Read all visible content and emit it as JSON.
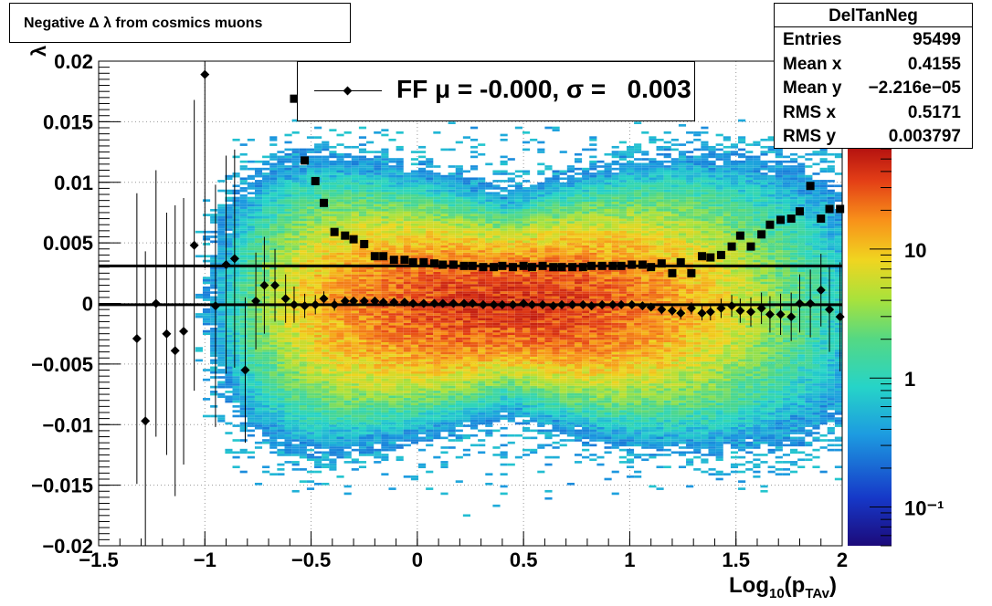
{
  "title": "Negative Δ λ from cosmics muons",
  "legend": {
    "label": "FF μ = -0.000, σ =   0.003"
  },
  "stats": {
    "title": "DelTanNeg",
    "rows": [
      {
        "key": "Entries",
        "value": "95499"
      },
      {
        "key": "Mean x",
        "value": "0.4155"
      },
      {
        "key": "Mean y",
        "value": "−2.216e−05"
      },
      {
        "key": "RMS x",
        "value": "0.5171"
      },
      {
        "key": "RMS y",
        "value": "0.003797"
      }
    ]
  },
  "chart_data": {
    "type": "heatmap",
    "xlabel_main": "Log",
    "xlabel_sub": "10",
    "xlabel_rest": "(p",
    "xlabel_sub2": "TAv",
    "xlabel_end": ")",
    "ylabel": "λ",
    "xlim": [
      -1.5,
      2
    ],
    "ylim": [
      -0.02,
      0.02
    ],
    "x_ticks": [
      -1.5,
      -1,
      -0.5,
      0,
      0.5,
      1,
      1.5,
      2
    ],
    "x_tick_labels": [
      "−1.5",
      "−1",
      "−0.5",
      "0",
      "0.5",
      "1",
      "1.5",
      "2"
    ],
    "y_ticks": [
      -0.02,
      -0.015,
      -0.01,
      -0.005,
      0,
      0.005,
      0.01,
      0.015,
      0.02
    ],
    "y_tick_labels": [
      "−0.02",
      "−0.015",
      "−0.01",
      "−0.005",
      "0",
      "0.005",
      "0.01",
      "0.015",
      "0.02"
    ],
    "colorbar": {
      "scale": "log",
      "range": [
        0.05,
        60
      ],
      "tick_labels": [
        "10⁻¹",
        "1",
        "10"
      ],
      "tick_values": [
        0.1,
        1,
        10
      ]
    },
    "grid": true,
    "heatmap_model": {
      "mean_x": 0.4155,
      "mean_y": -2.22e-05,
      "rms_x": 0.5171,
      "rms_y": 0.003797,
      "entries": 95499
    },
    "series": [
      {
        "name": "mean",
        "marker": "diamond",
        "x": [
          -1.32,
          -1.28,
          -1.23,
          -1.18,
          -1.14,
          -1.1,
          -1.05,
          -1.0,
          -0.95,
          -0.9,
          -0.86,
          -0.81,
          -0.76,
          -0.72,
          -0.67,
          -0.62,
          -0.58,
          -0.53,
          -0.48,
          -0.44,
          -0.39,
          -0.34,
          -0.3,
          -0.25,
          -0.2,
          -0.16,
          -0.11,
          -0.06,
          -0.02,
          0.03,
          0.08,
          0.12,
          0.17,
          0.22,
          0.26,
          0.31,
          0.36,
          0.4,
          0.45,
          0.5,
          0.54,
          0.59,
          0.64,
          0.68,
          0.73,
          0.78,
          0.82,
          0.87,
          0.92,
          0.96,
          1.01,
          1.06,
          1.1,
          1.15,
          1.2,
          1.24,
          1.29,
          1.34,
          1.38,
          1.43,
          1.48,
          1.52,
          1.57,
          1.62,
          1.66,
          1.71,
          1.76,
          1.8,
          1.85,
          1.9,
          1.94,
          1.99
        ],
        "y": [
          -0.0029,
          -0.0097,
          0.0,
          -0.0025,
          -0.0039,
          -0.0023,
          0.0048,
          0.0189,
          -0.0002,
          0.0032,
          0.0037,
          -0.0055,
          0.0002,
          0.0015,
          0.0015,
          0.0004,
          -0.0001,
          -0.0002,
          -0.0001,
          0.0004,
          -0.0001,
          0.0002,
          0.0002,
          0.0002,
          0.0002,
          0.0001,
          0.0001,
          0.0001,
          0.0,
          0.0,
          0.0,
          0.0,
          0.0,
          0.0,
          0.0,
          -0.0001,
          -0.0001,
          -0.0001,
          -0.0001,
          0.0,
          -0.0001,
          -0.0001,
          -0.0002,
          -0.0001,
          -0.0001,
          -0.0001,
          -0.0002,
          -0.0001,
          -0.0001,
          -0.0001,
          -0.0001,
          -0.0002,
          -0.0003,
          -0.0005,
          -0.0006,
          -0.0008,
          -0.0004,
          -0.0008,
          -0.0007,
          -0.0004,
          -0.0002,
          -0.0006,
          -0.0007,
          -0.0004,
          -0.0009,
          -0.0009,
          -0.0011,
          0.0,
          0.0,
          0.0011,
          -0.0005,
          -0.0011
        ],
        "err": [
          0.012,
          0.014,
          0.011,
          0.01,
          0.012,
          0.011,
          0.012,
          0.016,
          0.01,
          0.009,
          0.009,
          0.006,
          0.004,
          0.004,
          0.003,
          0.002,
          0.0015,
          0.001,
          0.0008,
          0.0006,
          0.0005,
          0.0004,
          0.0003,
          0.0003,
          0.0002,
          0.0002,
          0.0002,
          0.0002,
          0.0002,
          0.0002,
          0.0002,
          0.0002,
          0.0002,
          0.0002,
          0.0002,
          0.0002,
          0.0002,
          0.0002,
          0.0002,
          0.0002,
          0.0002,
          0.0002,
          0.0002,
          0.0002,
          0.0002,
          0.0002,
          0.0002,
          0.0002,
          0.0002,
          0.0003,
          0.0003,
          0.0003,
          0.0003,
          0.0004,
          0.0004,
          0.0005,
          0.0005,
          0.0006,
          0.0007,
          0.0008,
          0.0009,
          0.001,
          0.0012,
          0.0013,
          0.0015,
          0.0017,
          0.002,
          0.0024,
          0.0028,
          0.003,
          0.0035,
          0.0045
        ]
      },
      {
        "name": "sigma",
        "marker": "square",
        "x": [
          -0.58,
          -0.53,
          -0.48,
          -0.44,
          -0.39,
          -0.34,
          -0.3,
          -0.25,
          -0.2,
          -0.16,
          -0.11,
          -0.06,
          -0.02,
          0.03,
          0.08,
          0.12,
          0.17,
          0.22,
          0.26,
          0.31,
          0.36,
          0.4,
          0.45,
          0.5,
          0.54,
          0.59,
          0.64,
          0.68,
          0.73,
          0.78,
          0.82,
          0.87,
          0.92,
          0.96,
          1.01,
          1.06,
          1.1,
          1.15,
          1.2,
          1.24,
          1.29,
          1.34,
          1.38,
          1.43,
          1.48,
          1.52,
          1.57,
          1.62,
          1.66,
          1.71,
          1.76,
          1.8,
          1.85,
          1.9,
          1.94,
          1.99
        ],
        "y": [
          0.0169,
          0.0118,
          0.0101,
          0.0083,
          0.0059,
          0.0056,
          0.0053,
          0.0049,
          0.0039,
          0.0039,
          0.0036,
          0.0036,
          0.0034,
          0.0034,
          0.0033,
          0.0032,
          0.0032,
          0.0031,
          0.0031,
          0.003,
          0.003,
          0.0031,
          0.003,
          0.0031,
          0.003,
          0.0031,
          0.003,
          0.003,
          0.003,
          0.003,
          0.0031,
          0.0031,
          0.0031,
          0.0031,
          0.0032,
          0.0032,
          0.003,
          0.0033,
          0.0025,
          0.0034,
          0.0025,
          0.0039,
          0.0038,
          0.004,
          0.0047,
          0.0056,
          0.0047,
          0.0057,
          0.0065,
          0.0069,
          0.007,
          0.0076,
          0.0097,
          0.007,
          0.0078,
          0.0078
        ]
      }
    ],
    "fit_lines": [
      {
        "name": "mean-fit",
        "y": -0.0001
      },
      {
        "name": "sigma-fit",
        "y": 0.0031
      }
    ]
  }
}
